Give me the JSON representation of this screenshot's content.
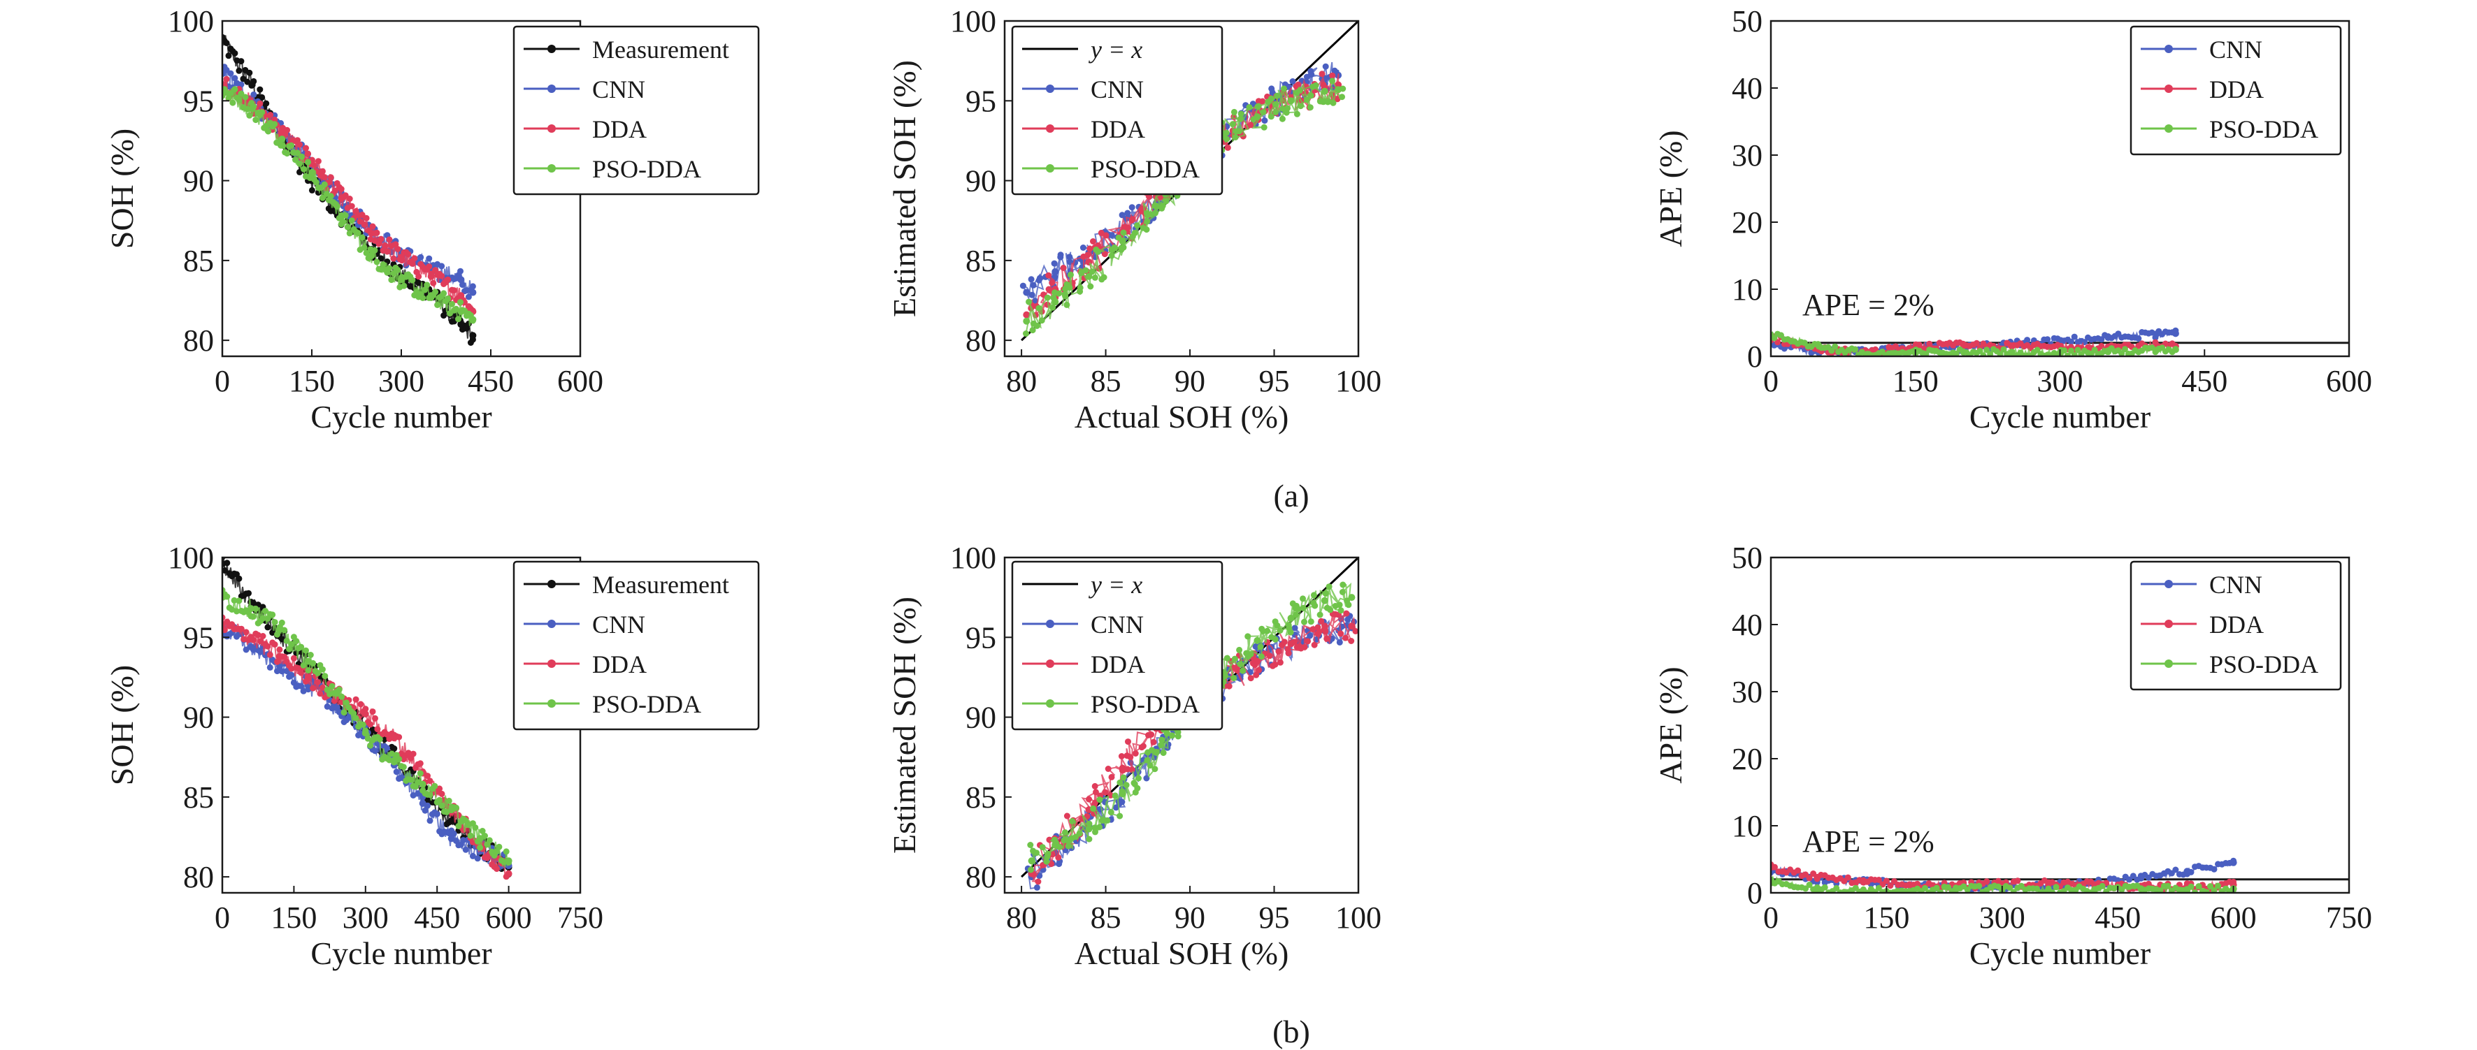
{
  "colors": {
    "measurement": "#111111",
    "cnn": "#4a5fc1",
    "dda": "#e03c5a",
    "pso_dda": "#6fc44a",
    "axis": "#1a1a1a"
  },
  "row_labels": [
    "(a)",
    "(b)"
  ],
  "chart_data": [
    {
      "id": "a1",
      "type": "scatter",
      "xlabel": "Cycle number",
      "ylabel": "SOH (%)",
      "xlim": [
        0,
        600
      ],
      "ylim": [
        79,
        100
      ],
      "xticks": [
        0,
        150,
        300,
        450,
        600
      ],
      "yticks": [
        80,
        85,
        90,
        95,
        100
      ],
      "legend": "top-right",
      "series": [
        {
          "name": "Measurement",
          "key": "measurement",
          "x": [
            0,
            50,
            100,
            150,
            200,
            250,
            300,
            350,
            400,
            420
          ],
          "y": [
            98.8,
            96.0,
            92.7,
            90.0,
            87.8,
            85.7,
            84.0,
            82.9,
            81.0,
            80.3
          ]
        },
        {
          "name": "CNN",
          "key": "cnn",
          "x": [
            0,
            50,
            100,
            150,
            200,
            250,
            300,
            350,
            400,
            420
          ],
          "y": [
            96.7,
            95.0,
            93.0,
            91.0,
            88.8,
            86.8,
            85.4,
            84.5,
            83.8,
            83.0
          ]
        },
        {
          "name": "DDA",
          "key": "dda",
          "x": [
            0,
            50,
            100,
            150,
            200,
            250,
            300,
            350,
            400,
            420
          ],
          "y": [
            96.0,
            94.8,
            93.0,
            91.2,
            88.9,
            86.7,
            85.2,
            84.0,
            82.8,
            81.8
          ]
        },
        {
          "name": "PSO-DDA",
          "key": "pso_dda",
          "x": [
            0,
            50,
            100,
            150,
            200,
            250,
            300,
            350,
            400,
            420
          ],
          "y": [
            95.7,
            94.5,
            92.6,
            90.4,
            87.8,
            85.3,
            83.8,
            82.8,
            81.8,
            81.3
          ]
        }
      ]
    },
    {
      "id": "a2",
      "type": "scatter",
      "xlabel": "Actual SOH (%)",
      "ylabel": "Estimated SOH (%)",
      "xlim": [
        79,
        100
      ],
      "ylim": [
        79,
        100
      ],
      "xticks": [
        80,
        85,
        90,
        95,
        100
      ],
      "yticks": [
        80,
        85,
        90,
        95,
        100
      ],
      "legend": "top-left",
      "reference_line": {
        "name": "y = x",
        "from": [
          80,
          80
        ],
        "to": [
          100,
          100
        ]
      },
      "series": [
        {
          "name": "CNN",
          "key": "cnn",
          "x": [
            80.3,
            82,
            84,
            86,
            88,
            90,
            92,
            94,
            96,
            98,
            98.8
          ],
          "y": [
            83.0,
            84.3,
            85.5,
            86.8,
            88.6,
            90.9,
            92.8,
            94.3,
            95.5,
            96.4,
            96.6
          ]
        },
        {
          "name": "DDA",
          "key": "dda",
          "x": [
            80.3,
            82,
            84,
            86,
            88,
            90,
            92,
            94,
            96,
            98,
            98.8
          ],
          "y": [
            81.6,
            83.2,
            84.9,
            86.8,
            89.0,
            91.2,
            93.0,
            94.2,
            95.2,
            95.8,
            96.0
          ]
        },
        {
          "name": "PSO-DDA",
          "key": "pso_dda",
          "x": [
            80.3,
            82,
            84,
            86,
            88,
            90,
            92,
            94,
            96,
            98,
            98.8
          ],
          "y": [
            81.2,
            82.4,
            84.0,
            86.2,
            88.4,
            91.0,
            92.9,
            94.0,
            95.0,
            95.6,
            95.7
          ]
        }
      ]
    },
    {
      "id": "a3",
      "type": "scatter",
      "xlabel": "Cycle number",
      "ylabel": "APE (%)",
      "xlim": [
        0,
        600
      ],
      "ylim": [
        0,
        50
      ],
      "xticks": [
        0,
        150,
        300,
        450,
        600
      ],
      "yticks": [
        0,
        10,
        20,
        30,
        40,
        50
      ],
      "legend": "top-right",
      "annotation": "APE = 2%",
      "threshold": 2,
      "series": [
        {
          "name": "CNN",
          "key": "cnn",
          "x": [
            0,
            50,
            100,
            150,
            200,
            250,
            300,
            350,
            400,
            420
          ],
          "y": [
            2.0,
            0.5,
            0.6,
            1.2,
            1.3,
            1.8,
            2.3,
            2.8,
            3.3,
            3.4
          ]
        },
        {
          "name": "DDA",
          "key": "dda",
          "x": [
            0,
            50,
            100,
            150,
            200,
            250,
            300,
            350,
            400,
            420
          ],
          "y": [
            2.8,
            1.0,
            0.5,
            1.4,
            1.6,
            1.5,
            1.4,
            1.4,
            1.6,
            1.5
          ]
        },
        {
          "name": "PSO-DDA",
          "key": "pso_dda",
          "x": [
            0,
            50,
            100,
            150,
            200,
            250,
            300,
            350,
            400,
            420
          ],
          "y": [
            3.1,
            1.5,
            0.3,
            0.5,
            0.6,
            0.6,
            0.5,
            0.7,
            0.9,
            1.0
          ]
        }
      ]
    },
    {
      "id": "b1",
      "type": "scatter",
      "xlabel": "Cycle number",
      "ylabel": "SOH (%)",
      "xlim": [
        0,
        750
      ],
      "ylim": [
        79,
        100
      ],
      "xticks": [
        0,
        150,
        300,
        450,
        600,
        750
      ],
      "yticks": [
        80,
        85,
        90,
        95,
        100
      ],
      "legend": "top-right",
      "series": [
        {
          "name": "Measurement",
          "key": "measurement",
          "x": [
            0,
            60,
            120,
            180,
            240,
            300,
            360,
            420,
            480,
            540,
            600
          ],
          "y": [
            99.6,
            97.2,
            95.2,
            93.2,
            91.0,
            89.3,
            87.5,
            85.3,
            83.5,
            82.0,
            80.6
          ]
        },
        {
          "name": "CNN",
          "key": "cnn",
          "x": [
            0,
            60,
            120,
            180,
            240,
            300,
            360,
            420,
            480,
            540,
            600
          ],
          "y": [
            95.6,
            94.4,
            93.2,
            92.0,
            90.6,
            89.0,
            87.0,
            84.6,
            82.4,
            81.6,
            80.7
          ]
        },
        {
          "name": "DDA",
          "key": "dda",
          "x": [
            0,
            60,
            120,
            180,
            240,
            300,
            360,
            420,
            480,
            540,
            600
          ],
          "y": [
            95.8,
            95.0,
            93.8,
            92.5,
            91.3,
            90.2,
            88.7,
            86.5,
            84.2,
            82.0,
            80.2
          ]
        },
        {
          "name": "PSO-DDA",
          "key": "pso_dda",
          "x": [
            0,
            60,
            120,
            180,
            240,
            300,
            360,
            420,
            480,
            540,
            600
          ],
          "y": [
            97.5,
            96.8,
            95.5,
            93.5,
            91.5,
            89.0,
            87.2,
            85.8,
            84.2,
            82.4,
            81.0
          ]
        }
      ]
    },
    {
      "id": "b2",
      "type": "scatter",
      "xlabel": "Actual SOH (%)",
      "ylabel": "Estimated SOH (%)",
      "xlim": [
        79,
        100
      ],
      "ylim": [
        79,
        100
      ],
      "xticks": [
        80,
        85,
        90,
        95,
        100
      ],
      "yticks": [
        80,
        85,
        90,
        95,
        100
      ],
      "legend": "top-left",
      "reference_line": {
        "name": "y = x",
        "from": [
          80,
          80
        ],
        "to": [
          100,
          100
        ]
      },
      "series": [
        {
          "name": "CNN",
          "key": "cnn",
          "x": [
            80.6,
            82,
            84,
            86,
            88,
            90,
            92,
            94,
            96,
            98,
            99.6
          ],
          "y": [
            80.0,
            81.5,
            83.2,
            85.5,
            88.0,
            90.3,
            92.2,
            93.6,
            94.6,
            95.4,
            95.6
          ]
        },
        {
          "name": "DDA",
          "key": "dda",
          "x": [
            80.6,
            82,
            84,
            86,
            88,
            90,
            92,
            94,
            96,
            98,
            99.6
          ],
          "y": [
            80.2,
            82.0,
            84.2,
            86.8,
            89.3,
            91.0,
            92.3,
            93.5,
            94.6,
            95.5,
            95.7
          ]
        },
        {
          "name": "PSO-DDA",
          "key": "pso_dda",
          "x": [
            80.6,
            82,
            84,
            86,
            88,
            90,
            92,
            94,
            96,
            98,
            99.6
          ],
          "y": [
            81.0,
            82.0,
            83.0,
            85.2,
            87.8,
            90.3,
            92.8,
            94.8,
            96.2,
            97.3,
            97.5
          ]
        }
      ]
    },
    {
      "id": "b3",
      "type": "scatter",
      "xlabel": "Cycle number",
      "ylabel": "APE (%)",
      "xlim": [
        0,
        750
      ],
      "ylim": [
        0,
        50
      ],
      "xticks": [
        0,
        150,
        300,
        450,
        600,
        750
      ],
      "yticks": [
        0,
        10,
        20,
        30,
        40,
        50
      ],
      "legend": "top-right",
      "annotation": "APE = 2%",
      "threshold": 2,
      "series": [
        {
          "name": "CNN",
          "key": "cnn",
          "x": [
            0,
            60,
            120,
            180,
            240,
            300,
            360,
            420,
            480,
            540,
            600
          ],
          "y": [
            3.5,
            2.0,
            1.6,
            1.2,
            0.8,
            1.0,
            1.1,
            1.4,
            2.2,
            3.2,
            4.5
          ]
        },
        {
          "name": "DDA",
          "key": "dda",
          "x": [
            0,
            60,
            120,
            180,
            240,
            300,
            360,
            420,
            480,
            540,
            600
          ],
          "y": [
            3.8,
            2.3,
            1.6,
            1.2,
            1.0,
            1.3,
            1.5,
            1.2,
            1.0,
            1.0,
            1.2
          ]
        },
        {
          "name": "PSO-DDA",
          "key": "pso_dda",
          "x": [
            0,
            60,
            120,
            180,
            240,
            300,
            360,
            420,
            480,
            540,
            600
          ],
          "y": [
            1.9,
            0.5,
            0.3,
            0.2,
            0.5,
            0.6,
            0.4,
            0.5,
            0.6,
            0.5,
            0.6
          ]
        }
      ]
    }
  ]
}
